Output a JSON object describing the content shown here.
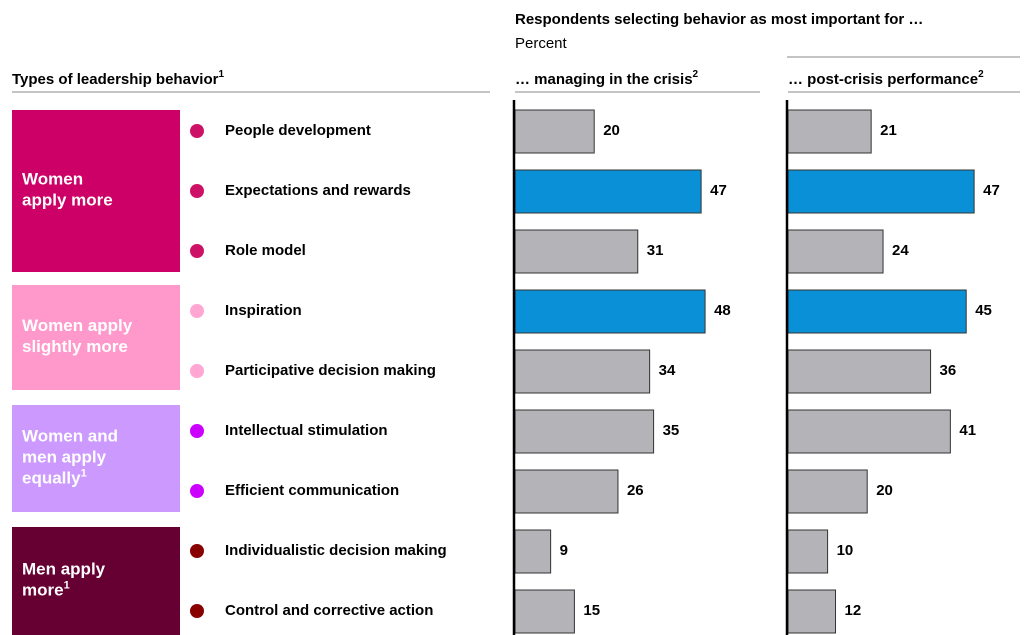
{
  "chart_data": {
    "type": "bar",
    "orientation": "horizontal",
    "title": "Respondents selecting behavior as most important for …",
    "subtitle": "Percent",
    "category_header": {
      "text": "Types of leadership behavior",
      "sup": "1"
    },
    "groups": [
      {
        "label": [
          "Women",
          "apply more"
        ],
        "color": "#cc0066",
        "dot_color": "#cc1166",
        "items": [
          "People development",
          "Expectations and rewards",
          "Role model"
        ]
      },
      {
        "label": [
          "Women apply",
          "slightly more"
        ],
        "color": "#ff99cc",
        "dot_color": "#ffa6d3",
        "items": [
          "Inspiration",
          "Participative decision making"
        ]
      },
      {
        "label": [
          "Women and",
          "men apply",
          "equally"
        ],
        "sup": "1",
        "color": "#cc99ff",
        "dot_color": "#cc00ff",
        "items": [
          "Intellectual stimulation",
          "Efficient communication"
        ]
      },
      {
        "label": [
          "Men apply",
          "more"
        ],
        "sup": "1",
        "color": "#660033",
        "dot_color": "#880000",
        "items": [
          "Individualistic decision making",
          "Control and corrective action"
        ]
      }
    ],
    "series": [
      {
        "name": "… managing in the crisis",
        "sup": "2",
        "values": [
          20,
          47,
          31,
          48,
          34,
          35,
          26,
          9,
          15
        ],
        "colors": [
          "#b3b3b8",
          "#0a90d6",
          "#b3b3b8",
          "#0a90d6",
          "#b3b3b8",
          "#b3b3b8",
          "#b3b3b8",
          "#b3b3b8",
          "#b3b3b8"
        ]
      },
      {
        "name": "… post-crisis performance",
        "sup": "2",
        "values": [
          21,
          47,
          24,
          45,
          36,
          41,
          20,
          10,
          12
        ],
        "colors": [
          "#b3b3b8",
          "#0a90d6",
          "#b3b3b8",
          "#0a90d6",
          "#b3b3b8",
          "#b3b3b8",
          "#b3b3b8",
          "#b3b3b8",
          "#b3b3b8"
        ]
      }
    ],
    "xlim": [
      0,
      50
    ]
  }
}
